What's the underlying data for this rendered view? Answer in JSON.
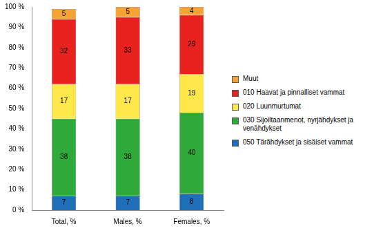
{
  "chart_data": {
    "type": "bar",
    "stacked": true,
    "data_labels": true,
    "legend": "right",
    "grid": false,
    "categories": [
      "Total, %",
      "Males, %",
      "Females, %"
    ],
    "series": [
      {
        "name": "050 Tärähdykset ja sisäiset vammat",
        "color": "#1f6fb8",
        "values": [
          7,
          7,
          8
        ]
      },
      {
        "name": "030 Sijoiltaanmenot, nyrjähdykset ja venähdykset",
        "color": "#2faa3a",
        "values": [
          38,
          38,
          40
        ]
      },
      {
        "name": "020 Luunmurtumat",
        "color": "#ffe84a",
        "values": [
          17,
          17,
          19
        ]
      },
      {
        "name": "010 Haavat ja pinnalliset vammat",
        "color": "#e8231f",
        "values": [
          32,
          33,
          29
        ]
      },
      {
        "name": "Muut",
        "color": "#f7a235",
        "values": [
          5,
          5,
          4
        ]
      }
    ],
    "ylim": [
      0,
      100
    ],
    "yticks": [
      {
        "value": 0,
        "label": "0 %"
      },
      {
        "value": 10,
        "label": "10 %"
      },
      {
        "value": 20,
        "label": "20 %"
      },
      {
        "value": 30,
        "label": "30 %"
      },
      {
        "value": 40,
        "label": "40 %"
      },
      {
        "value": 50,
        "label": "50 %"
      },
      {
        "value": 60,
        "label": "60 %"
      },
      {
        "value": 70,
        "label": "70 %"
      },
      {
        "value": 80,
        "label": "80 %"
      },
      {
        "value": 90,
        "label": "90 %"
      },
      {
        "value": 100,
        "label": "100 %"
      }
    ]
  }
}
